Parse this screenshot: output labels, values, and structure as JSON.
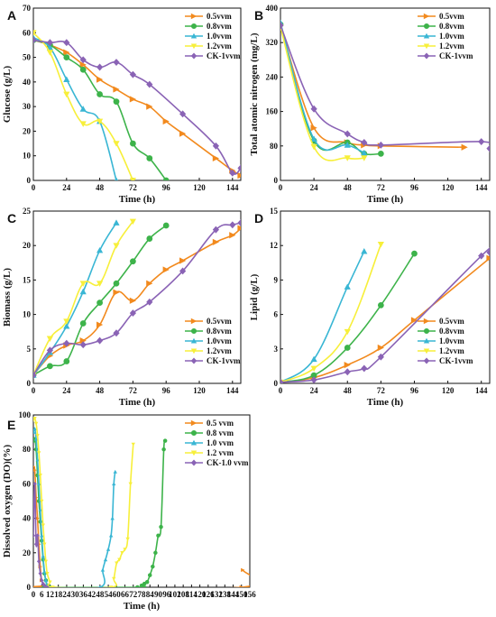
{
  "colors": {
    "0.5vvm": "#f28a1e",
    "0.8vvm": "#3db34a",
    "1.0vvm": "#39b6d4",
    "1.2vvm": "#f7ef3a",
    "CK-1vvm": "#8a63b5"
  },
  "markers": {
    "0.5vvm": "triangle-right",
    "0.8vvm": "circle",
    "1.0vvm": "triangle-up",
    "1.2vvm": "triangle-down",
    "CK-1vvm": "diamond"
  },
  "chart_data": [
    {
      "panel": "A",
      "type": "line",
      "xlabel": "Time (h)",
      "ylabel": "Glucose (g/L)",
      "xlim": [
        0,
        150
      ],
      "ylim": [
        0,
        70
      ],
      "xticks": [
        0,
        24,
        48,
        72,
        96,
        120,
        144
      ],
      "yticks": [
        0,
        10,
        20,
        30,
        40,
        50,
        60,
        70
      ],
      "legend_position": "top-right",
      "series": [
        {
          "name": "0.5vvm",
          "key": "0.5vvm",
          "x": [
            0,
            12,
            24,
            36,
            48,
            60,
            72,
            84,
            96,
            108,
            132,
            144,
            150
          ],
          "y": [
            57,
            55,
            52,
            47,
            41,
            37,
            33,
            30,
            24,
            19,
            9,
            4,
            2
          ]
        },
        {
          "name": "0.8vvm",
          "key": "0.8vvm",
          "x": [
            0,
            12,
            24,
            36,
            48,
            60,
            72,
            84,
            96
          ],
          "y": [
            57,
            55,
            50,
            45,
            35,
            32,
            15,
            9,
            0
          ]
        },
        {
          "name": "1.0vvm",
          "key": "1.0vvm",
          "x": [
            0,
            12,
            24,
            36,
            48,
            60
          ],
          "y": [
            58,
            54,
            41,
            29,
            24,
            0
          ]
        },
        {
          "name": "1.2vvm",
          "key": "1.2vvm",
          "x": [
            0,
            12,
            24,
            36,
            48,
            60,
            72
          ],
          "y": [
            60,
            52,
            35,
            23,
            24,
            15,
            0
          ]
        },
        {
          "name": "CK-1vvm",
          "key": "CK-1vvm",
          "x": [
            0,
            12,
            24,
            36,
            48,
            60,
            72,
            84,
            108,
            132,
            144,
            150
          ],
          "y": [
            57,
            56,
            56,
            49,
            46,
            48,
            43,
            39,
            27,
            14,
            3,
            5
          ]
        }
      ]
    },
    {
      "panel": "B",
      "type": "line",
      "xlabel": "Time (h)",
      "ylabel": "Total atomic nitrogen (mg/L)",
      "xlim": [
        0,
        150
      ],
      "ylim": [
        0,
        400
      ],
      "xticks": [
        0,
        24,
        48,
        72,
        96,
        120,
        144
      ],
      "yticks": [
        0,
        80,
        160,
        240,
        320,
        400
      ],
      "legend_position": "top-right",
      "series": [
        {
          "name": "0.5vvm",
          "key": "0.5vvm",
          "x": [
            0,
            24,
            48,
            60,
            72,
            132
          ],
          "y": [
            360,
            122,
            88,
            82,
            80,
            77
          ]
        },
        {
          "name": "0.8vvm",
          "key": "0.8vvm",
          "x": [
            0,
            24,
            48,
            60,
            72
          ],
          "y": [
            362,
            92,
            88,
            62,
            62
          ]
        },
        {
          "name": "1.0vvm",
          "key": "1.0vvm",
          "x": [
            0,
            24,
            48,
            60
          ],
          "y": [
            366,
            96,
            82,
            64
          ]
        },
        {
          "name": "1.2vvm",
          "key": "1.2vvm",
          "x": [
            0,
            24,
            48,
            60
          ],
          "y": [
            356,
            78,
            52,
            52
          ]
        },
        {
          "name": "CK-1vvm",
          "key": "CK-1vvm",
          "x": [
            0,
            24,
            48,
            60,
            72,
            144,
            150
          ],
          "y": [
            360,
            166,
            108,
            88,
            82,
            90,
            74
          ]
        }
      ]
    },
    {
      "panel": "C",
      "type": "line",
      "xlabel": "Time (h)",
      "ylabel": "Biomass (g/L)",
      "xlim": [
        0,
        150
      ],
      "ylim": [
        0,
        25
      ],
      "xticks": [
        0,
        24,
        48,
        72,
        96,
        120,
        144
      ],
      "yticks": [
        0,
        5,
        10,
        15,
        20,
        25
      ],
      "legend_position": "bottom-right",
      "series": [
        {
          "name": "0.5vvm",
          "key": "0.5vvm",
          "x": [
            0,
            12,
            24,
            36,
            48,
            60,
            72,
            84,
            96,
            108,
            132,
            144,
            150
          ],
          "y": [
            1.2,
            4,
            5.5,
            6.2,
            8.5,
            13.2,
            12,
            14.5,
            16.5,
            17.8,
            20.5,
            21.5,
            22.5
          ]
        },
        {
          "name": "0.8vvm",
          "key": "0.8vvm",
          "x": [
            0,
            12,
            24,
            36,
            48,
            60,
            72,
            84,
            96
          ],
          "y": [
            1.2,
            2.5,
            3.2,
            8.7,
            11.7,
            14.5,
            17.7,
            21,
            22.9
          ]
        },
        {
          "name": "1.0vvm",
          "key": "1.0vvm",
          "x": [
            0,
            12,
            24,
            36,
            48,
            60
          ],
          "y": [
            1.2,
            4.5,
            8.3,
            13.3,
            19.3,
            23.3
          ]
        },
        {
          "name": "1.2vvm",
          "key": "1.2vvm",
          "x": [
            0,
            12,
            24,
            36,
            48,
            60,
            72
          ],
          "y": [
            1.2,
            6.5,
            9,
            14.5,
            14.5,
            20,
            23.5
          ]
        },
        {
          "name": "CK-1vvm",
          "key": "CK-1vvm",
          "x": [
            0,
            12,
            24,
            36,
            48,
            60,
            72,
            84,
            108,
            132,
            144,
            150
          ],
          "y": [
            1.2,
            4.8,
            5.8,
            5.6,
            6.2,
            7.3,
            10.2,
            11.8,
            16.3,
            22.3,
            23,
            23.3
          ]
        }
      ]
    },
    {
      "panel": "D",
      "type": "line",
      "xlabel": "Time (h)",
      "ylabel": "Lipid (g/L)",
      "xlim": [
        0,
        150
      ],
      "ylim": [
        0,
        15
      ],
      "xticks": [
        0,
        24,
        48,
        72,
        96,
        120,
        144
      ],
      "yticks": [
        0,
        3,
        6,
        9,
        12,
        15
      ],
      "legend_position": "bottom-right",
      "series": [
        {
          "name": "0.5vvm",
          "key": "0.5vvm",
          "x": [
            0,
            24,
            48,
            72,
            96,
            150
          ],
          "y": [
            0.1,
            0.5,
            1.6,
            3.1,
            5.5,
            10.9
          ]
        },
        {
          "name": "0.8vvm",
          "key": "0.8vvm",
          "x": [
            0,
            24,
            48,
            72,
            96
          ],
          "y": [
            0.1,
            0.7,
            3.1,
            6.8,
            11.3
          ]
        },
        {
          "name": "1.0vvm",
          "key": "1.0vvm",
          "x": [
            0,
            24,
            48,
            60
          ],
          "y": [
            0.1,
            2.1,
            8.4,
            11.5
          ]
        },
        {
          "name": "1.2vvm",
          "key": "1.2vvm",
          "x": [
            0,
            24,
            48,
            72
          ],
          "y": [
            0.1,
            1.3,
            4.5,
            12.1
          ]
        },
        {
          "name": "CK-1vvm",
          "key": "CK-1vvm",
          "x": [
            0,
            24,
            48,
            60,
            72,
            144,
            150
          ],
          "y": [
            0.1,
            0.3,
            1.0,
            1.3,
            2.3,
            11.1,
            11.4
          ]
        }
      ]
    },
    {
      "panel": "E",
      "type": "line",
      "xlabel": "Time (h)",
      "ylabel": "Dissolved oxygen (DO)(%)",
      "xlim": [
        0,
        156
      ],
      "ylim": [
        0,
        100
      ],
      "xticks": [
        0,
        6,
        12,
        18,
        24,
        30,
        36,
        42,
        48,
        54,
        60,
        66,
        72,
        78,
        84,
        90,
        96,
        102,
        108,
        114,
        120,
        126,
        132,
        138,
        144,
        150,
        156
      ],
      "yticks": [
        0,
        20,
        40,
        60,
        80,
        100
      ],
      "legend_position": "top-right",
      "series": [
        {
          "name": "0.5 vvm",
          "key": "0.5vvm",
          "x": [
            0,
            1,
            2,
            3,
            4,
            5,
            6,
            8,
            10,
            150,
            151
          ],
          "y": [
            70,
            68,
            52,
            40,
            25,
            12,
            4,
            1,
            0,
            0,
            10
          ]
        },
        {
          "name": "0.8 vvm",
          "key": "0.8vvm",
          "x": [
            0,
            1,
            2,
            3,
            4,
            5,
            6,
            7,
            8,
            9,
            10,
            12,
            75,
            78,
            80,
            82,
            84,
            86,
            88,
            90,
            92,
            94,
            95
          ],
          "y": [
            85,
            86,
            80,
            65,
            50,
            38,
            27,
            16,
            8,
            4,
            1,
            0,
            0,
            1,
            2,
            3,
            7,
            12,
            20,
            30,
            35,
            80,
            85
          ]
        },
        {
          "name": "1.0 vvm",
          "key": "1.0vvm",
          "x": [
            0,
            1,
            2,
            3,
            4,
            5,
            6,
            7,
            8,
            9,
            10,
            12,
            48,
            50,
            52,
            54,
            56,
            57,
            58,
            59
          ],
          "y": [
            90,
            92,
            86,
            74,
            60,
            45,
            30,
            18,
            9,
            4,
            1,
            0,
            0,
            10,
            16,
            22,
            30,
            40,
            60,
            67
          ]
        },
        {
          "name": "1.2 vvm",
          "key": "1.2vvm",
          "x": [
            0,
            1,
            2,
            3,
            4,
            5,
            6,
            7,
            8,
            9,
            10,
            12,
            14,
            56,
            58,
            60,
            62,
            64,
            66,
            68,
            70,
            72
          ],
          "y": [
            97,
            98,
            95,
            88,
            78,
            65,
            50,
            36,
            25,
            15,
            8,
            3,
            0,
            0,
            5,
            14,
            16,
            20,
            22,
            28,
            60,
            83
          ]
        },
        {
          "name": "CK-1.0 vvm",
          "key": "CK-1vvm",
          "x": [
            0,
            1,
            2,
            3,
            4,
            5,
            6,
            7,
            8,
            10
          ],
          "y": [
            30,
            60,
            25,
            30,
            15,
            8,
            4,
            2,
            1,
            0
          ]
        }
      ]
    }
  ]
}
